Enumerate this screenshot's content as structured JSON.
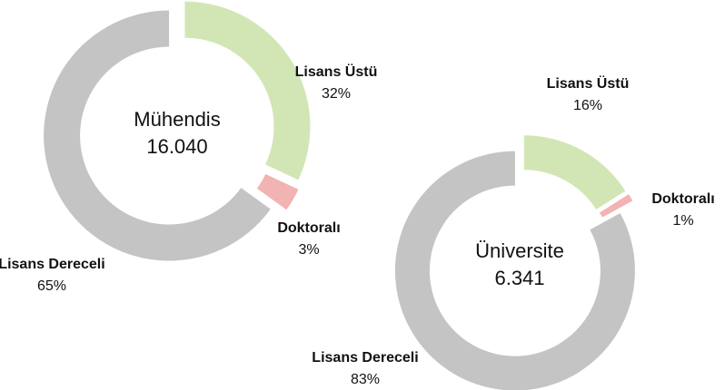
{
  "chart_data": [
    {
      "type": "donut",
      "center_label": "Mühendis",
      "total": {
        "value": 16040,
        "label": "16.040"
      },
      "categories": [
        "Lisans Üstü",
        "Doktoralı",
        "Lisans Dereceli"
      ],
      "values": [
        32,
        3,
        65
      ],
      "value_labels": [
        "32%",
        "3%",
        "65%"
      ],
      "colors": [
        "#d2e6b5",
        "#f2b3b3",
        "#c4c4c4"
      ]
    },
    {
      "type": "donut",
      "center_label": "Üniversite",
      "total": {
        "value": 6341,
        "label": "6.341"
      },
      "categories": [
        "Lisans Üstü",
        "Doktoralı",
        "Lisans Dereceli"
      ],
      "values": [
        16,
        1,
        83
      ],
      "value_labels": [
        "16%",
        "1%",
        "83%"
      ],
      "colors": [
        "#d2e6b5",
        "#f2b3b3",
        "#c4c4c4"
      ]
    }
  ]
}
